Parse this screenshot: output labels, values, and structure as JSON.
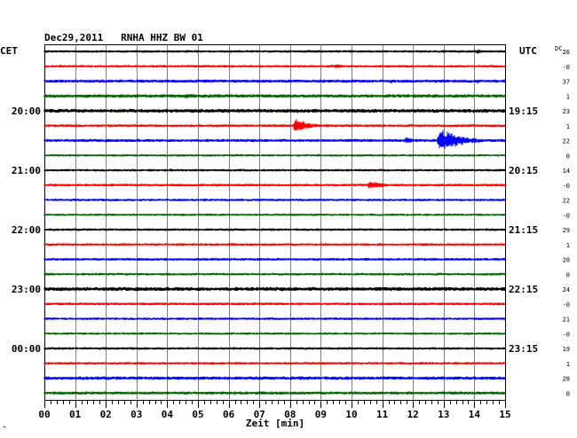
{
  "header": {
    "title": "Dec29,2011   RNHA HHZ BW 01",
    "left_tz": "CET",
    "right_tz": "UTC",
    "dc_label": "DC"
  },
  "footer": {
    "xlabel": "Zeit [min]",
    "corner_mark": "^"
  },
  "colors": {
    "cycle": [
      "#000000",
      "#ff0000",
      "#0000ff",
      "#006400"
    ],
    "grid": "#808080"
  },
  "chart_data": {
    "type": "line",
    "title": "Dec29,2011   RNHA HHZ BW 01",
    "xlabel": "Zeit [min]",
    "ylabel": "",
    "xlim": [
      0,
      15
    ],
    "x_ticks": [
      "00",
      "01",
      "02",
      "03",
      "04",
      "05",
      "06",
      "07",
      "08",
      "09",
      "10",
      "11",
      "12",
      "13",
      "14",
      "15"
    ],
    "rows_per_hour": 4,
    "minutes_per_row": 15,
    "left_hour_labels": [
      {
        "row": 4,
        "label": "20:00"
      },
      {
        "row": 8,
        "label": "21:00"
      },
      {
        "row": 12,
        "label": "22:00"
      },
      {
        "row": 16,
        "label": "23:00"
      },
      {
        "row": 20,
        "label": "00:00"
      }
    ],
    "right_hour_labels": [
      {
        "row": 4,
        "label": "19:15"
      },
      {
        "row": 8,
        "label": "20:15"
      },
      {
        "row": 12,
        "label": "21:15"
      },
      {
        "row": 16,
        "label": "22:15"
      },
      {
        "row": 20,
        "label": "23:15"
      }
    ],
    "dc_values": [
      "26",
      "-0",
      "37",
      "1",
      "23",
      "1",
      "22",
      "0",
      "14",
      "-0",
      "22",
      "-0",
      "29",
      "1",
      "20",
      "0",
      "24",
      "-0",
      "21",
      "-0",
      "19",
      "1",
      "28",
      "0"
    ],
    "traces": [
      {
        "color": "#000000",
        "noise": 1.5,
        "events": [
          {
            "t": 10.3,
            "amp": 2,
            "dur": 0.6
          },
          {
            "t": 14.1,
            "amp": 3,
            "dur": 0.3
          }
        ]
      },
      {
        "color": "#ff0000",
        "noise": 1.5,
        "events": [
          {
            "t": 9.5,
            "amp": 3,
            "dur": 0.4
          }
        ]
      },
      {
        "color": "#0000ff",
        "noise": 1.8,
        "events": [
          {
            "t": 11.3,
            "amp": 3,
            "dur": 0.3
          },
          {
            "t": 14.1,
            "amp": 3,
            "dur": 0.3
          }
        ]
      },
      {
        "color": "#006400",
        "noise": 2.0,
        "events": [
          {
            "t": 4.6,
            "amp": 4,
            "dur": 0.3
          },
          {
            "t": 5.5,
            "amp": 3,
            "dur": 0.3
          }
        ]
      },
      {
        "color": "#000000",
        "noise": 2.2,
        "events": []
      },
      {
        "color": "#ff0000",
        "noise": 1.6,
        "events": [
          {
            "t": 8.2,
            "amp": 8,
            "dur": 0.6
          }
        ]
      },
      {
        "color": "#0000ff",
        "noise": 1.8,
        "events": [
          {
            "t": 11.8,
            "amp": 4,
            "dur": 0.4
          },
          {
            "t": 12.9,
            "amp": 14,
            "dur": 0.9
          }
        ]
      },
      {
        "color": "#006400",
        "noise": 1.4,
        "events": []
      },
      {
        "color": "#000000",
        "noise": 1.5,
        "events": []
      },
      {
        "color": "#ff0000",
        "noise": 1.6,
        "events": [
          {
            "t": 10.6,
            "amp": 5,
            "dur": 0.7
          }
        ]
      },
      {
        "color": "#0000ff",
        "noise": 1.5,
        "events": []
      },
      {
        "color": "#006400",
        "noise": 1.4,
        "events": [
          {
            "t": 8.8,
            "amp": 2,
            "dur": 0.2
          }
        ]
      },
      {
        "color": "#000000",
        "noise": 1.5,
        "events": []
      },
      {
        "color": "#ff0000",
        "noise": 1.5,
        "events": []
      },
      {
        "color": "#0000ff",
        "noise": 1.6,
        "events": []
      },
      {
        "color": "#006400",
        "noise": 1.5,
        "events": []
      },
      {
        "color": "#000000",
        "noise": 2.3,
        "events": []
      },
      {
        "color": "#ff0000",
        "noise": 1.6,
        "events": []
      },
      {
        "color": "#0000ff",
        "noise": 1.5,
        "events": []
      },
      {
        "color": "#006400",
        "noise": 1.4,
        "events": []
      },
      {
        "color": "#000000",
        "noise": 1.5,
        "events": []
      },
      {
        "color": "#ff0000",
        "noise": 1.5,
        "events": [
          {
            "t": 1.0,
            "amp": 2,
            "dur": 0.2
          }
        ]
      },
      {
        "color": "#0000ff",
        "noise": 2.0,
        "events": []
      },
      {
        "color": "#006400",
        "noise": 1.8,
        "events": []
      }
    ]
  }
}
